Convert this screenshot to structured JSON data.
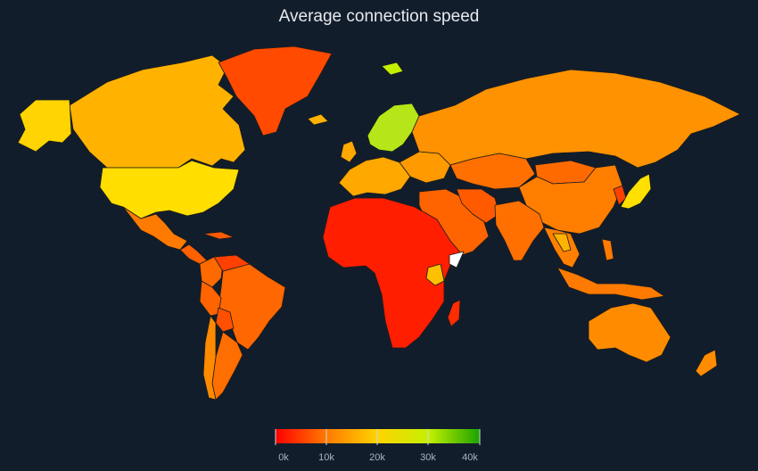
{
  "title": "Average connection speed",
  "colors": {
    "background": "#121d2c",
    "scale": [
      "#ff0000",
      "#ff7a00",
      "#ffd400",
      "#c4f000",
      "#1aa300"
    ],
    "no_data": "#ffffff"
  },
  "legend": {
    "min": 0,
    "max": 40000,
    "ticks": [
      "0k",
      "10k",
      "20k",
      "30k",
      "40k"
    ]
  },
  "regions": [
    {
      "name": "Greenland",
      "color": "#ff4a00"
    },
    {
      "name": "Canada",
      "color": "#ffb300"
    },
    {
      "name": "Alaska",
      "color": "#ffd400"
    },
    {
      "name": "United States",
      "color": "#ffde00"
    },
    {
      "name": "Mexico",
      "color": "#ff7a00"
    },
    {
      "name": "Central America",
      "color": "#ff6000"
    },
    {
      "name": "Cuba",
      "color": "#ff5a00"
    },
    {
      "name": "Colombia",
      "color": "#ff6a00"
    },
    {
      "name": "Venezuela",
      "color": "#ff4000"
    },
    {
      "name": "Brazil",
      "color": "#ff6800"
    },
    {
      "name": "Peru",
      "color": "#ff6400"
    },
    {
      "name": "Bolivia",
      "color": "#ff5000"
    },
    {
      "name": "Argentina",
      "color": "#ff6e00"
    },
    {
      "name": "Chile",
      "color": "#ff8a00"
    },
    {
      "name": "Iceland",
      "color": "#ffb300"
    },
    {
      "name": "Scandinavia",
      "color": "#b6e619"
    },
    {
      "name": "Western Europe",
      "color": "#ffa800"
    },
    {
      "name": "Eastern Europe",
      "color": "#ff9a00"
    },
    {
      "name": "Russia",
      "color": "#ff9200"
    },
    {
      "name": "Central Asia",
      "color": "#ff7000"
    },
    {
      "name": "Middle East",
      "color": "#ff6400"
    },
    {
      "name": "Iran",
      "color": "#ff5a00"
    },
    {
      "name": "India",
      "color": "#ff7000"
    },
    {
      "name": "China",
      "color": "#ff7e00"
    },
    {
      "name": "Mongolia",
      "color": "#ff6a00"
    },
    {
      "name": "Korea",
      "color": "#ff4000"
    },
    {
      "name": "Japan",
      "color": "#ffe000"
    },
    {
      "name": "Southeast Asia",
      "color": "#ff8000"
    },
    {
      "name": "Thailand",
      "color": "#ffb300"
    },
    {
      "name": "Indonesia",
      "color": "#ff7a00"
    },
    {
      "name": "Africa",
      "color": "#ff1e00"
    },
    {
      "name": "Kenya",
      "color": "#ffc000"
    },
    {
      "name": "Madagascar",
      "color": "#ff2c00"
    },
    {
      "name": "Australia",
      "color": "#ff8c00"
    },
    {
      "name": "New Zealand",
      "color": "#ff8c00"
    },
    {
      "name": "Svalbard",
      "color": "#c4f000"
    }
  ]
}
